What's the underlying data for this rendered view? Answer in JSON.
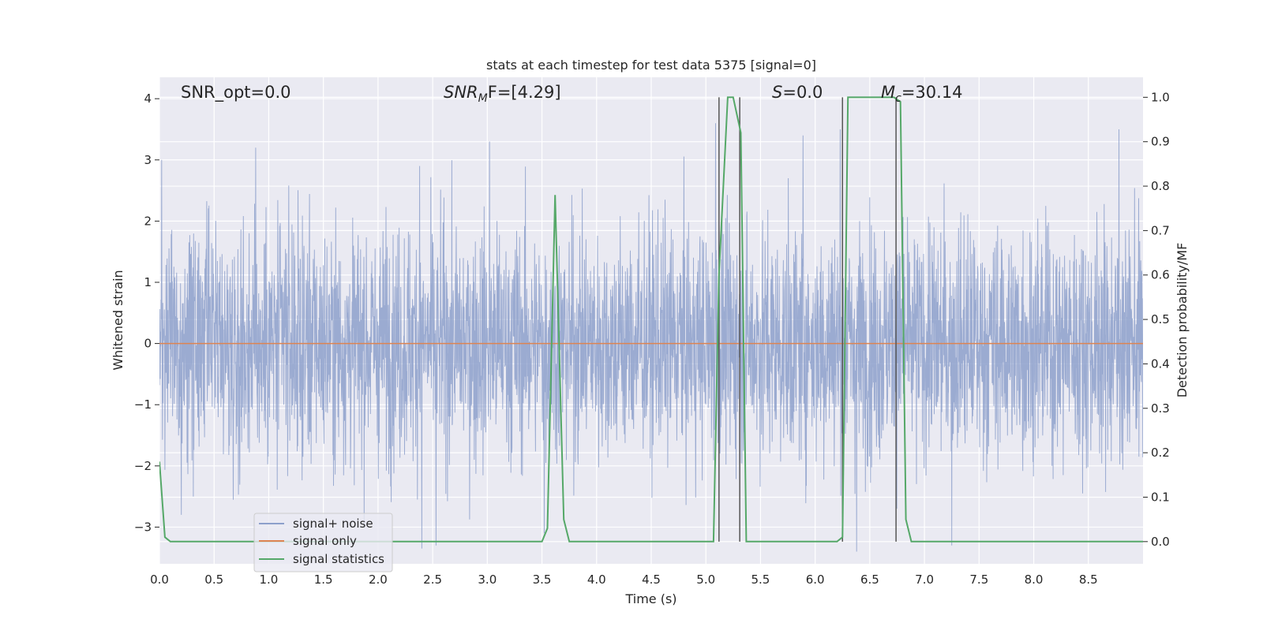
{
  "chart_data": {
    "type": "line",
    "title": "stats at each timestep for test data 5375 [signal=0]",
    "xlabel": "Time (s)",
    "ylabel": "Whitened strain",
    "y2label": "Detection probability/MF",
    "xlim": [
      0.0,
      9.0
    ],
    "ylim": [
      -3.6,
      4.35
    ],
    "y2lim": [
      -0.05,
      1.045
    ],
    "x_ticks": [
      0.0,
      0.5,
      1.0,
      1.5,
      2.0,
      2.5,
      3.0,
      3.5,
      4.0,
      4.5,
      5.0,
      5.5,
      6.0,
      6.5,
      7.0,
      7.5,
      8.0,
      8.5
    ],
    "x_tick_labels": [
      "0.0",
      "0.5",
      "1.0",
      "1.5",
      "2.0",
      "2.5",
      "3.0",
      "3.5",
      "4.0",
      "4.5",
      "5.0",
      "5.5",
      "6.0",
      "6.5",
      "7.0",
      "7.5",
      "8.0",
      "8.5"
    ],
    "y_ticks": [
      -3,
      -2,
      -1,
      0,
      1,
      2,
      3,
      4
    ],
    "y_tick_labels": [
      "−3",
      "−2",
      "−1",
      "0",
      "1",
      "2",
      "3",
      "4"
    ],
    "y2_ticks": [
      0.0,
      0.1,
      0.2,
      0.3,
      0.4,
      0.5,
      0.6,
      0.7,
      0.8,
      0.9,
      1.0
    ],
    "y2_tick_labels": [
      "0.0",
      "0.1",
      "0.2",
      "0.3",
      "0.4",
      "0.5",
      "0.6",
      "0.7",
      "0.8",
      "0.9",
      "1.0"
    ],
    "grid": true,
    "legend_position": "lower-left",
    "annotations": {
      "snr_opt": "SNR_opt=0.0",
      "snr_mf_main": "SNR",
      "snr_mf_sub": "M",
      "snr_mf_rest": "F=[4.29]",
      "s_italic": "S",
      "s_rest": "=0.0",
      "mc_main": "M",
      "mc_sub": "c",
      "mc_rest": "=30.14"
    },
    "series": [
      {
        "name": "signal+ noise",
        "color": "#8da0cb",
        "axis": "left",
        "noise_amplitude_estimate": 1.0,
        "peaks": [
          [
            0.02,
            3.0
          ],
          [
            0.88,
            3.2
          ],
          [
            2.38,
            2.9
          ],
          [
            3.02,
            3.3
          ],
          [
            5.09,
            3.6
          ],
          [
            5.89,
            3.4
          ],
          [
            6.23,
            3.5
          ],
          [
            8.78,
            3.5
          ]
        ],
        "troughs": [
          [
            0.2,
            -2.8
          ],
          [
            2.4,
            -3.35
          ],
          [
            2.53,
            -3.3
          ],
          [
            3.52,
            -3.1
          ],
          [
            6.38,
            -3.4
          ],
          [
            7.25,
            -3.3
          ]
        ]
      },
      {
        "name": "signal only",
        "color": "#dd8452",
        "axis": "left",
        "x": [
          0.0,
          9.0
        ],
        "y": [
          0.0,
          0.0
        ]
      },
      {
        "name": "signal statistics",
        "color": "#55a868",
        "axis": "right",
        "x": [
          0.0,
          0.05,
          0.1,
          0.15,
          3.5,
          3.55,
          3.62,
          3.7,
          3.75,
          5.07,
          5.12,
          5.2,
          5.25,
          5.32,
          5.37,
          5.42,
          6.2,
          6.25,
          6.3,
          6.72,
          6.78,
          6.83,
          6.88,
          9.0
        ],
        "y": [
          0.18,
          0.01,
          0.0,
          0.0,
          0.0,
          0.03,
          0.78,
          0.05,
          0.0,
          0.0,
          0.6,
          1.0,
          1.0,
          0.92,
          0.0,
          0.0,
          0.0,
          0.01,
          1.0,
          1.0,
          0.99,
          0.05,
          0.0,
          0.0
        ]
      }
    ],
    "vertical_markers": [
      5.12,
      5.31,
      6.25,
      6.74
    ],
    "vertical_marker_color": "#555555"
  }
}
